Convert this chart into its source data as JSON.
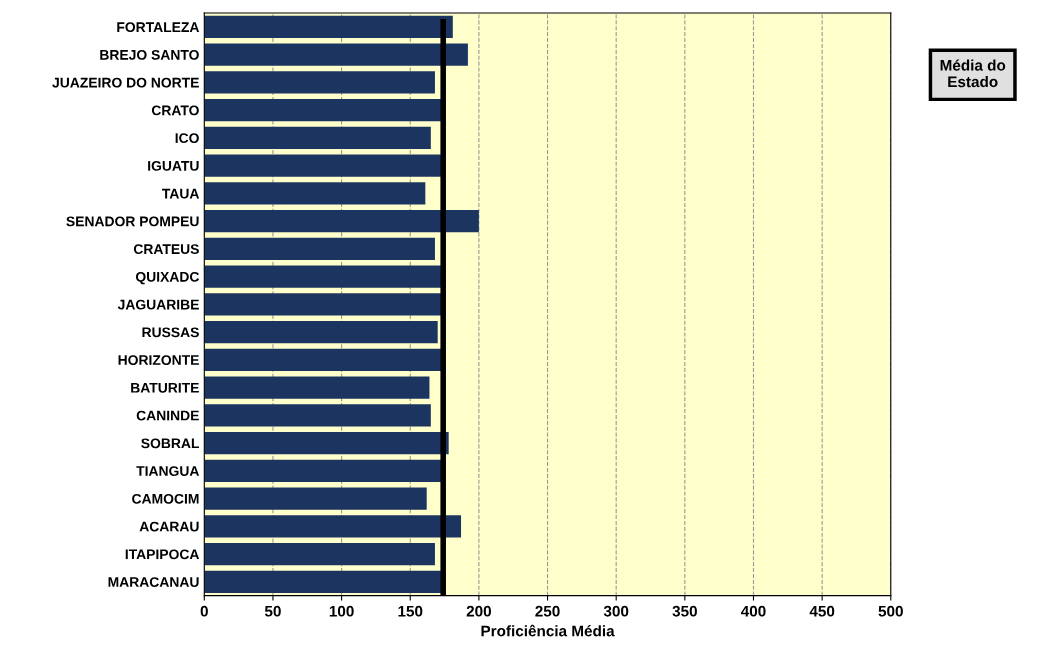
{
  "chart_data": {
    "type": "bar",
    "orientation": "horizontal",
    "xlabel": "Proficiência Média",
    "categories": [
      "FORTALEZA",
      "BREJO SANTO",
      "JUAZEIRO DO NORTE",
      "CRATO",
      "ICO",
      "IGUATU",
      "TAUA",
      "SENADOR POMPEU",
      "CRATEUS",
      "QUIXADC",
      "JAGUARIBE",
      "RUSSAS",
      "HORIZONTE",
      "BATURITE",
      "CANINDE",
      "SOBRAL",
      "TIANGUA",
      "CAMOCIM",
      "ACARAU",
      "ITAPIPOCA",
      "MARACANAU"
    ],
    "values": [
      181,
      192,
      168,
      173,
      165,
      173,
      161,
      200,
      168,
      173,
      173,
      170,
      173,
      164,
      165,
      178,
      173,
      162,
      187,
      168,
      175
    ],
    "color": "#1b3560",
    "xlim": [
      0,
      500
    ],
    "xticks": [
      0,
      50,
      100,
      150,
      200,
      250,
      300,
      350,
      400,
      450,
      500
    ],
    "grid": "x",
    "legend": "top right",
    "ref_lines": [
      {
        "axis": "x",
        "value": 174,
        "label": "Média do Estado",
        "color": "#000000",
        "line_style": "solid"
      }
    ]
  }
}
